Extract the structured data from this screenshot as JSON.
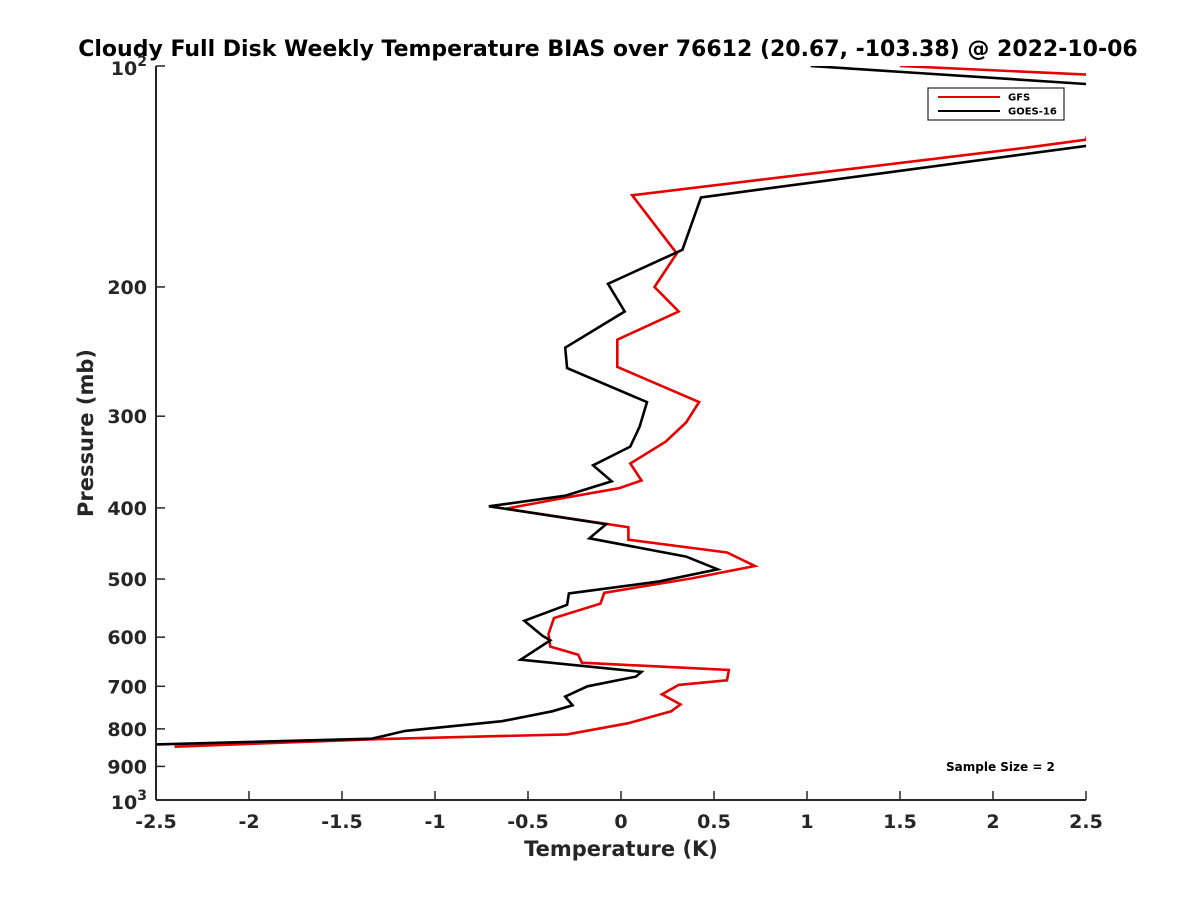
{
  "chart_data": {
    "type": "line",
    "title": "Cloudy Full Disk Weekly Temperature BIAS over 76612 (20.67, -103.38) @ 2022-10-06",
    "xlabel": "Temperature (K)",
    "ylabel": "Pressure (mb)",
    "xlim": [
      -2.5,
      2.5
    ],
    "ylim": [
      100,
      1000
    ],
    "y_scale": "log",
    "y_reversed": true,
    "grid": false,
    "legend_position": "top-right",
    "x_ticks": [
      "-2.5",
      "-2",
      "-1.5",
      "-1",
      "-0.5",
      "0",
      "0.5",
      "1",
      "1.5",
      "2",
      "2.5"
    ],
    "x_tick_values": [
      -2.5,
      -2,
      -1.5,
      -1,
      -0.5,
      0,
      0.5,
      1,
      1.5,
      2,
      2.5
    ],
    "y_ticks": [
      {
        "value": 100,
        "base": "10",
        "exp": "2"
      },
      {
        "value": 200,
        "label": "200"
      },
      {
        "value": 300,
        "label": "300"
      },
      {
        "value": 400,
        "label": "400"
      },
      {
        "value": 500,
        "label": "500"
      },
      {
        "value": 600,
        "label": "600"
      },
      {
        "value": 700,
        "label": "700"
      },
      {
        "value": 800,
        "label": "800"
      },
      {
        "value": 900,
        "label": "900"
      },
      {
        "value": 1000,
        "base": "10",
        "exp": "3"
      }
    ],
    "annotation": "Sample Size = 2",
    "series": [
      {
        "name": "GFS",
        "color": "#e60000",
        "points": [
          [
            1.5,
            100
          ],
          [
            2.6,
            103
          ],
          [
            2.5,
            126
          ],
          [
            2.2,
            129
          ],
          [
            0.06,
            150
          ],
          [
            0.3,
            180
          ],
          [
            0.18,
            200
          ],
          [
            0.31,
            216
          ],
          [
            -0.02,
            236
          ],
          [
            -0.02,
            257
          ],
          [
            0.42,
            287
          ],
          [
            0.35,
            306
          ],
          [
            0.24,
            325
          ],
          [
            0.05,
            348
          ],
          [
            0.11,
            367
          ],
          [
            -0.01,
            376
          ],
          [
            -0.29,
            387
          ],
          [
            -0.62,
            401
          ],
          [
            0.04,
            425
          ],
          [
            0.04,
            442
          ],
          [
            0.57,
            460
          ],
          [
            0.72,
            480
          ],
          [
            0.38,
            499
          ],
          [
            -0.09,
            522
          ],
          [
            -0.11,
            540
          ],
          [
            -0.36,
            565
          ],
          [
            -0.39,
            594
          ],
          [
            -0.38,
            618
          ],
          [
            -0.23,
            634
          ],
          [
            -0.21,
            650
          ],
          [
            0.58,
            665
          ],
          [
            0.57,
            687
          ],
          [
            0.31,
            697
          ],
          [
            0.22,
            718
          ],
          [
            0.32,
            741
          ],
          [
            0.27,
            757
          ],
          [
            0.04,
            786
          ],
          [
            -0.29,
            814
          ],
          [
            -1.3,
            826
          ],
          [
            -2.4,
            846
          ]
        ]
      },
      {
        "name": "GOES-16",
        "color": "#000000",
        "points": [
          [
            1.02,
            100
          ],
          [
            2.55,
            106
          ],
          [
            2.55,
            128
          ],
          [
            0.43,
            151
          ],
          [
            0.33,
            178
          ],
          [
            -0.07,
            198
          ],
          [
            0.02,
            216
          ],
          [
            -0.3,
            242
          ],
          [
            -0.29,
            258
          ],
          [
            0.14,
            287
          ],
          [
            0.1,
            310
          ],
          [
            0.05,
            330
          ],
          [
            -0.15,
            350
          ],
          [
            -0.05,
            368
          ],
          [
            -0.3,
            385
          ],
          [
            -0.71,
            398
          ],
          [
            -0.08,
            421
          ],
          [
            -0.17,
            440
          ],
          [
            0.35,
            466
          ],
          [
            0.52,
            485
          ],
          [
            0.2,
            504
          ],
          [
            -0.28,
            523
          ],
          [
            -0.29,
            542
          ],
          [
            -0.52,
            570
          ],
          [
            -0.42,
            598
          ],
          [
            -0.38,
            606
          ],
          [
            -0.54,
            644
          ],
          [
            0.11,
            669
          ],
          [
            0.08,
            679
          ],
          [
            -0.18,
            700
          ],
          [
            -0.3,
            723
          ],
          [
            -0.26,
            743
          ],
          [
            -0.37,
            757
          ],
          [
            -0.64,
            781
          ],
          [
            -1.16,
            805
          ],
          [
            -1.34,
            825
          ],
          [
            -2.5,
            840
          ]
        ]
      }
    ]
  }
}
